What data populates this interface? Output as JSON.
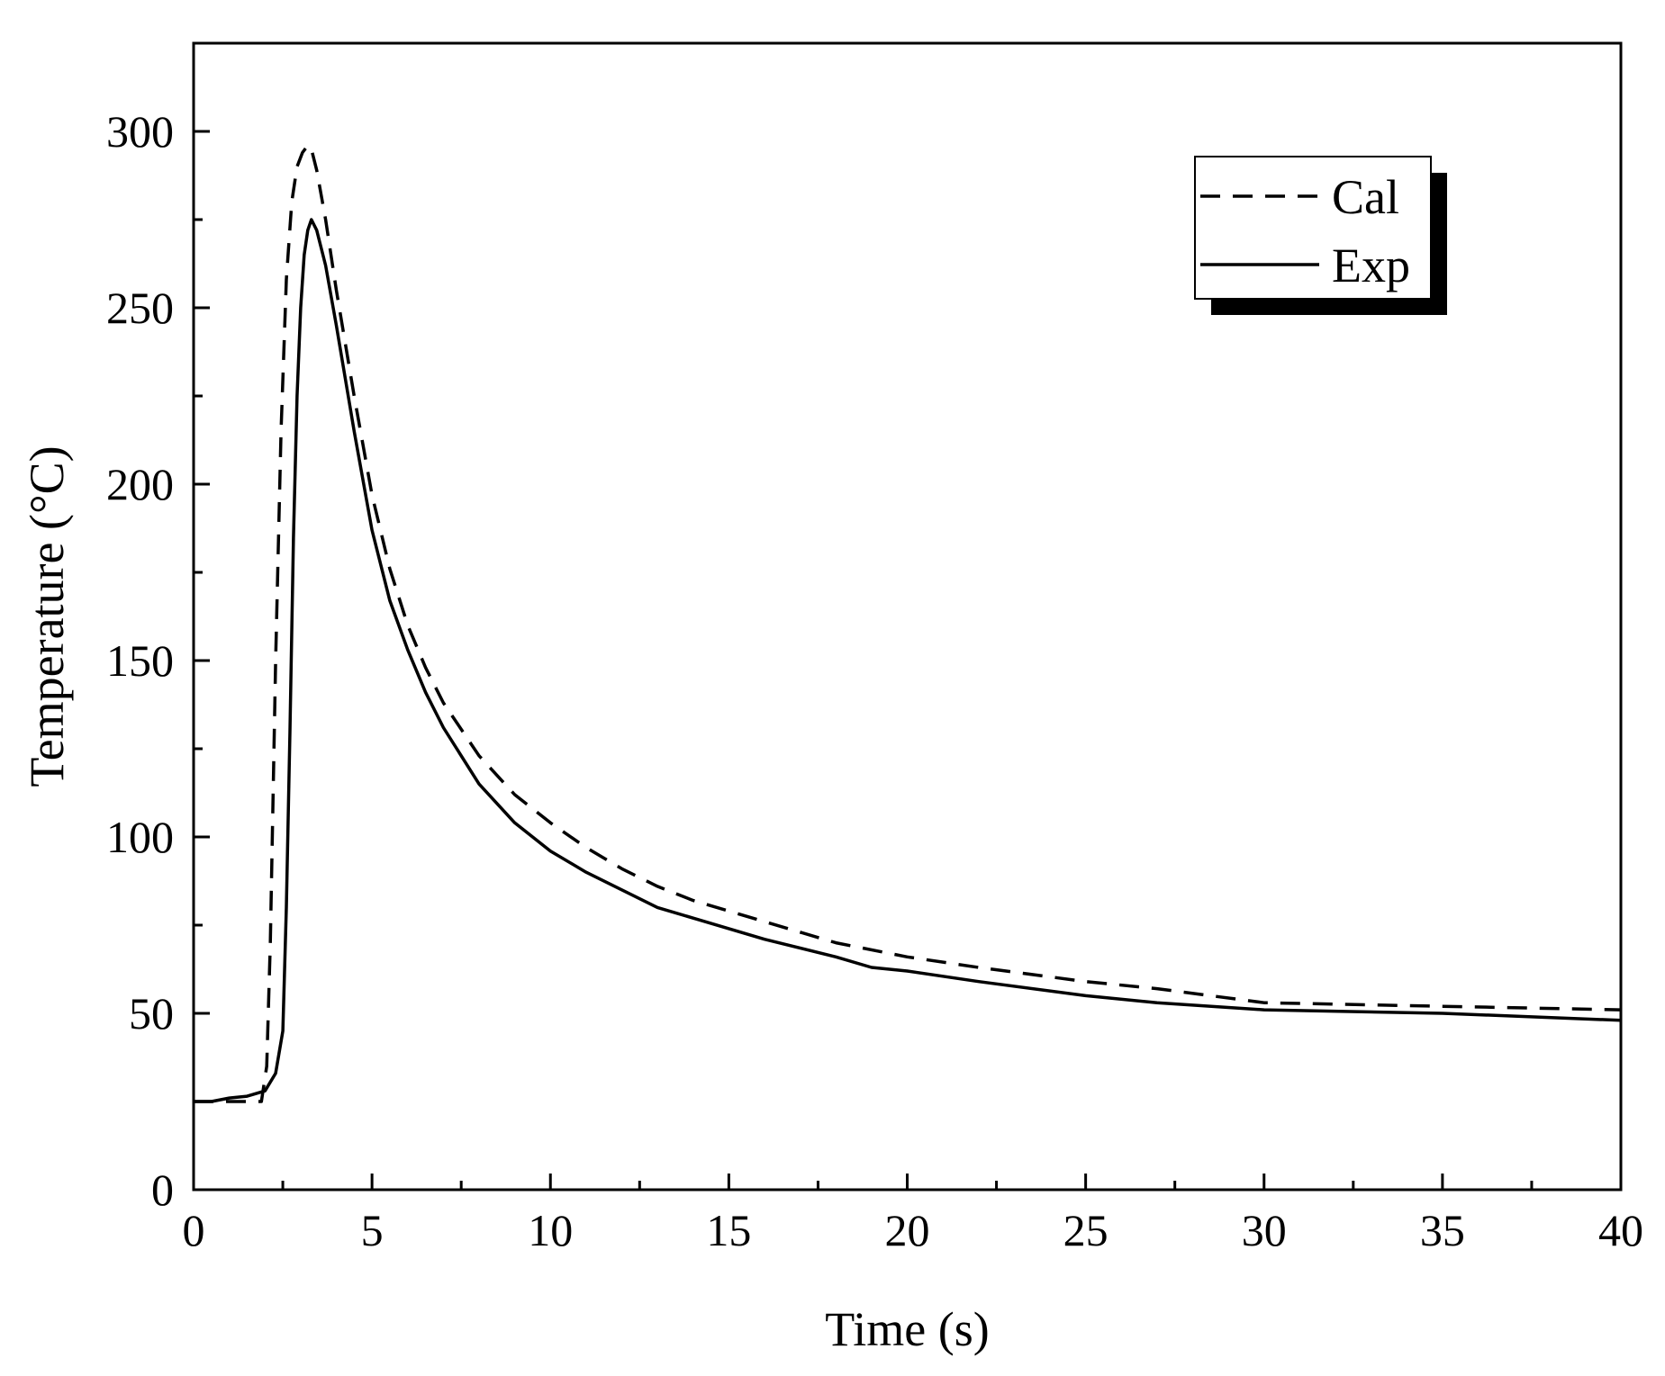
{
  "chart_data": {
    "type": "line",
    "title": "",
    "xlabel": "Time (s)",
    "ylabel": "Temperature (°C)",
    "xlim": [
      0,
      40
    ],
    "ylim": [
      0,
      325
    ],
    "xticks": [
      0,
      5,
      10,
      15,
      20,
      25,
      30,
      35,
      40
    ],
    "yticks": [
      0,
      50,
      100,
      150,
      200,
      250,
      300
    ],
    "grid": false,
    "legend_position": "top-right",
    "colors": {
      "line": "#000000",
      "background": "#ffffff"
    },
    "series": [
      {
        "name": "Cal",
        "style": "dashed",
        "x": [
          0,
          1,
          1.9,
          2.05,
          2.15,
          2.3,
          2.45,
          2.6,
          2.75,
          2.9,
          3.05,
          3.2,
          3.3,
          3.45,
          3.7,
          4.0,
          4.5,
          5.0,
          5.5,
          6.0,
          6.5,
          7.0,
          8.0,
          9.0,
          10.0,
          11.0,
          12.0,
          13.0,
          14.0,
          15.0,
          16.0,
          18.0,
          20.0,
          22.0,
          25.0,
          27.0,
          30.0,
          35.0,
          40.0
        ],
        "y": [
          25,
          25,
          25,
          35,
          70,
          150,
          215,
          258,
          280,
          290,
          294,
          296,
          295,
          289,
          275,
          255,
          225,
          197,
          176,
          160,
          148,
          138,
          123,
          112,
          104,
          97,
          91,
          86,
          82,
          79,
          76,
          70,
          66,
          63,
          59,
          57,
          53,
          52,
          51
        ]
      },
      {
        "name": "Exp",
        "style": "solid",
        "x": [
          0,
          0.5,
          1.0,
          1.5,
          2.0,
          2.3,
          2.5,
          2.6,
          2.7,
          2.8,
          2.9,
          3.0,
          3.1,
          3.2,
          3.3,
          3.45,
          3.7,
          4.0,
          4.5,
          5.0,
          5.5,
          6.0,
          6.5,
          7.0,
          8.0,
          9.0,
          10.0,
          11.0,
          12.0,
          13.0,
          14.0,
          15.0,
          16.0,
          18.0,
          19.0,
          20.0,
          22.0,
          25.0,
          27.0,
          30.0,
          35.0,
          40.0
        ],
        "y": [
          25,
          25,
          26,
          26.5,
          28,
          33,
          45,
          80,
          130,
          185,
          225,
          250,
          265,
          272,
          275,
          272,
          262,
          245,
          215,
          187,
          167,
          153,
          141,
          131,
          115,
          104,
          96,
          90,
          85,
          80,
          77,
          74,
          71,
          66,
          63,
          62,
          59,
          55,
          53,
          51,
          50,
          48
        ]
      }
    ]
  }
}
